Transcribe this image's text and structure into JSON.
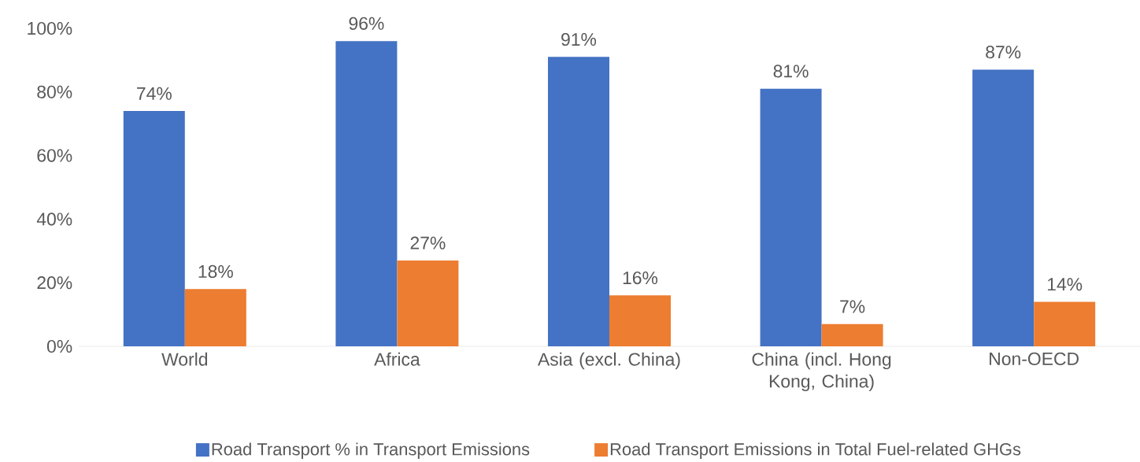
{
  "chart_data": {
    "type": "bar",
    "categories": [
      "World",
      "Africa",
      "Asia (excl. China)",
      "China (incl. Hong Kong, China)",
      "Non-OECD"
    ],
    "series": [
      {
        "name": "Road Transport % in Transport Emissions",
        "color": "#4472c4",
        "values": [
          74,
          96,
          91,
          81,
          87
        ],
        "value_labels": [
          "74%",
          "96%",
          "91%",
          "81%",
          "87%"
        ]
      },
      {
        "name": "Road Transport Emissions in Total Fuel-related GHGs",
        "color": "#ed7d31",
        "values": [
          18,
          27,
          16,
          7,
          14
        ],
        "value_labels": [
          "18%",
          "27%",
          "16%",
          "7%",
          "14%"
        ]
      }
    ],
    "ylim": [
      0,
      100
    ],
    "yticks": [
      {
        "value": 0,
        "label": "0%"
      },
      {
        "value": 20,
        "label": "20%"
      },
      {
        "value": 40,
        "label": "40%"
      },
      {
        "value": 60,
        "label": "60%"
      },
      {
        "value": 80,
        "label": "80%"
      },
      {
        "value": 100,
        "label": "100%"
      }
    ],
    "legend": "bottom"
  }
}
